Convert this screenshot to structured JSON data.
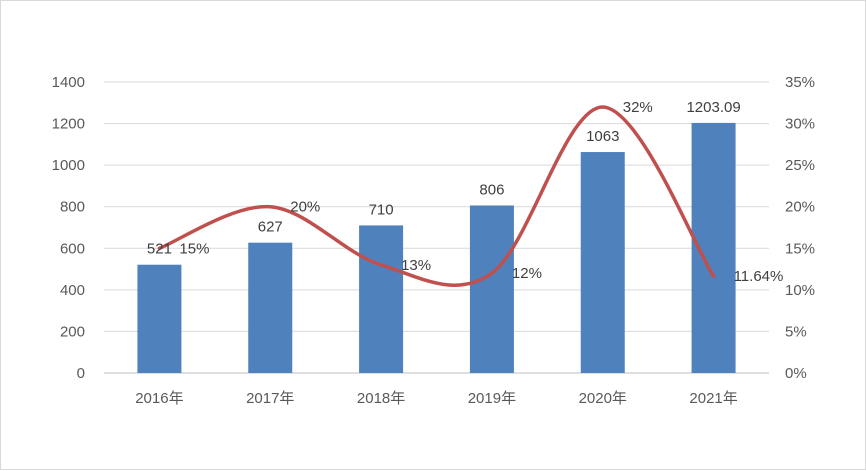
{
  "chart_data": {
    "type": "bar",
    "categories": [
      "2016年",
      "2017年",
      "2018年",
      "2019年",
      "2020年",
      "2021年"
    ],
    "series": [
      {
        "kind": "bar",
        "values": [
          521,
          627,
          710,
          806,
          1063,
          1203.09
        ],
        "labels": [
          "521",
          "627",
          "710",
          "806",
          "1063",
          "1203.09"
        ],
        "color": "#4F81BD",
        "axis": "left"
      },
      {
        "kind": "line",
        "values": [
          15,
          20,
          13,
          12,
          32,
          11.64
        ],
        "labels": [
          "15%",
          "20%",
          "13%",
          "12%",
          "32%",
          "11.64%"
        ],
        "color": "#C0504D",
        "axis": "right",
        "smooth": true
      }
    ],
    "left_axis": {
      "ylim": [
        0,
        1400
      ],
      "ticks": [
        "0",
        "200",
        "400",
        "600",
        "800",
        "1000",
        "1200",
        "1400"
      ]
    },
    "right_axis": {
      "ylim": [
        0,
        35
      ],
      "ticks": [
        "0%",
        "5%",
        "10%",
        "15%",
        "20%",
        "25%",
        "30%",
        "35%"
      ]
    },
    "grid": true,
    "legend": "none"
  }
}
